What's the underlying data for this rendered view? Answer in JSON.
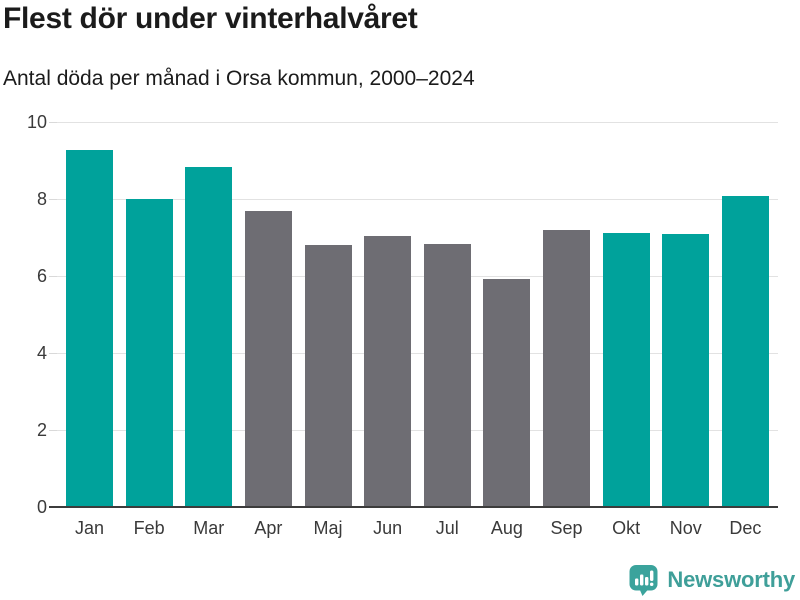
{
  "title": "Flest dör under vinterhalvåret",
  "subtitle": "Antal döda per månad i Orsa kommun, 2000–2024",
  "footer": {
    "brand": "Newsworthy",
    "logo_icon": "newsworthy-speech-bubble-bar-chart-icon"
  },
  "colors": {
    "highlight": "#00a29b",
    "muted": "#6e6d73",
    "grid": "#e2e2e2",
    "axis": "#3c3c3c",
    "title_text": "#1b1b1b",
    "tick_label": "#3a3a3a",
    "brand": "#3f9f99"
  },
  "chart_data": {
    "type": "bar",
    "title": "Flest dör under vinterhalvåret",
    "subtitle": "Antal döda per månad i Orsa kommun, 2000–2024",
    "categories": [
      "Jan",
      "Feb",
      "Mar",
      "Apr",
      "Maj",
      "Jun",
      "Jul",
      "Aug",
      "Sep",
      "Okt",
      "Nov",
      "Dec"
    ],
    "values": [
      9.28,
      8.0,
      8.84,
      7.68,
      6.8,
      7.04,
      6.84,
      5.92,
      7.2,
      7.12,
      7.08,
      8.08
    ],
    "series_roles": [
      "highlight",
      "highlight",
      "highlight",
      "muted",
      "muted",
      "muted",
      "muted",
      "muted",
      "muted",
      "highlight",
      "highlight",
      "highlight"
    ],
    "xlabel": "",
    "ylabel": "",
    "ylim": [
      0,
      10
    ],
    "yticks": [
      0,
      2,
      4,
      6,
      8,
      10
    ],
    "grid": true,
    "legend": false,
    "highlight_color": "#00a29b",
    "muted_color": "#6e6d73"
  }
}
